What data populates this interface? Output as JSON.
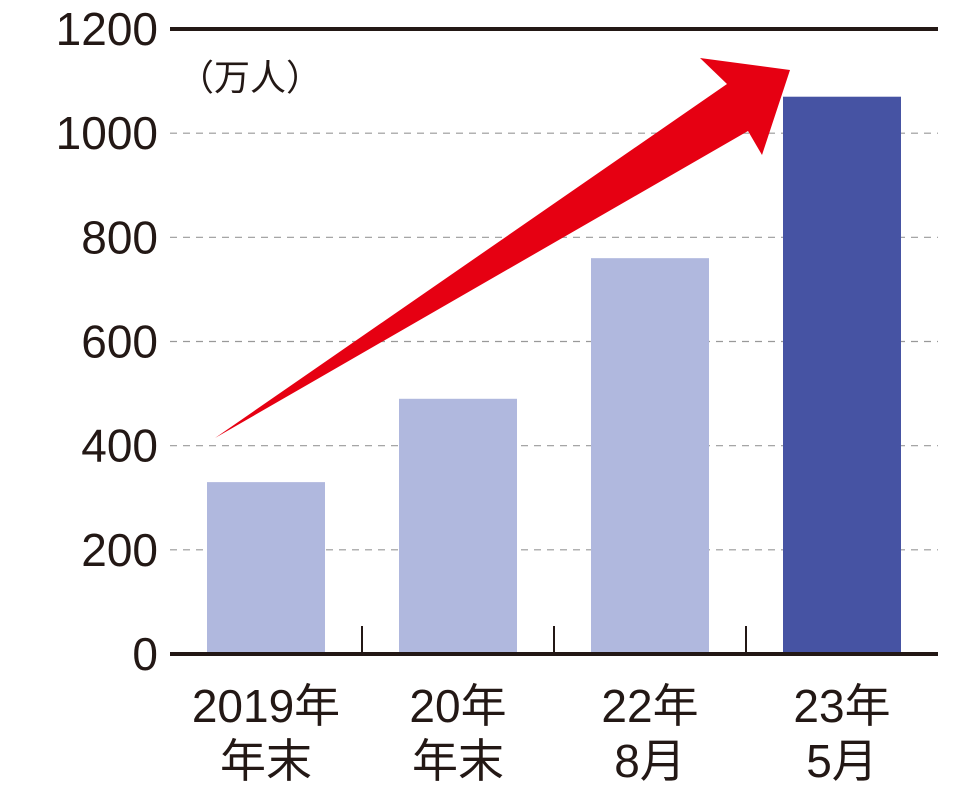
{
  "chart_data": {
    "type": "bar",
    "y_label": "（万人）",
    "categories": [
      [
        "2019年",
        "年末"
      ],
      [
        "20年",
        "年末"
      ],
      [
        "22年",
        "8月"
      ],
      [
        "23年",
        "5月"
      ]
    ],
    "values": [
      330,
      490,
      760,
      1070
    ],
    "colors": [
      "#b0b8de",
      "#b0b8de",
      "#b0b8de",
      "#4653a3"
    ],
    "ylim": [
      0,
      1200
    ],
    "yticks": [
      0,
      200,
      400,
      600,
      800,
      1000,
      1200
    ],
    "grid": true
  }
}
